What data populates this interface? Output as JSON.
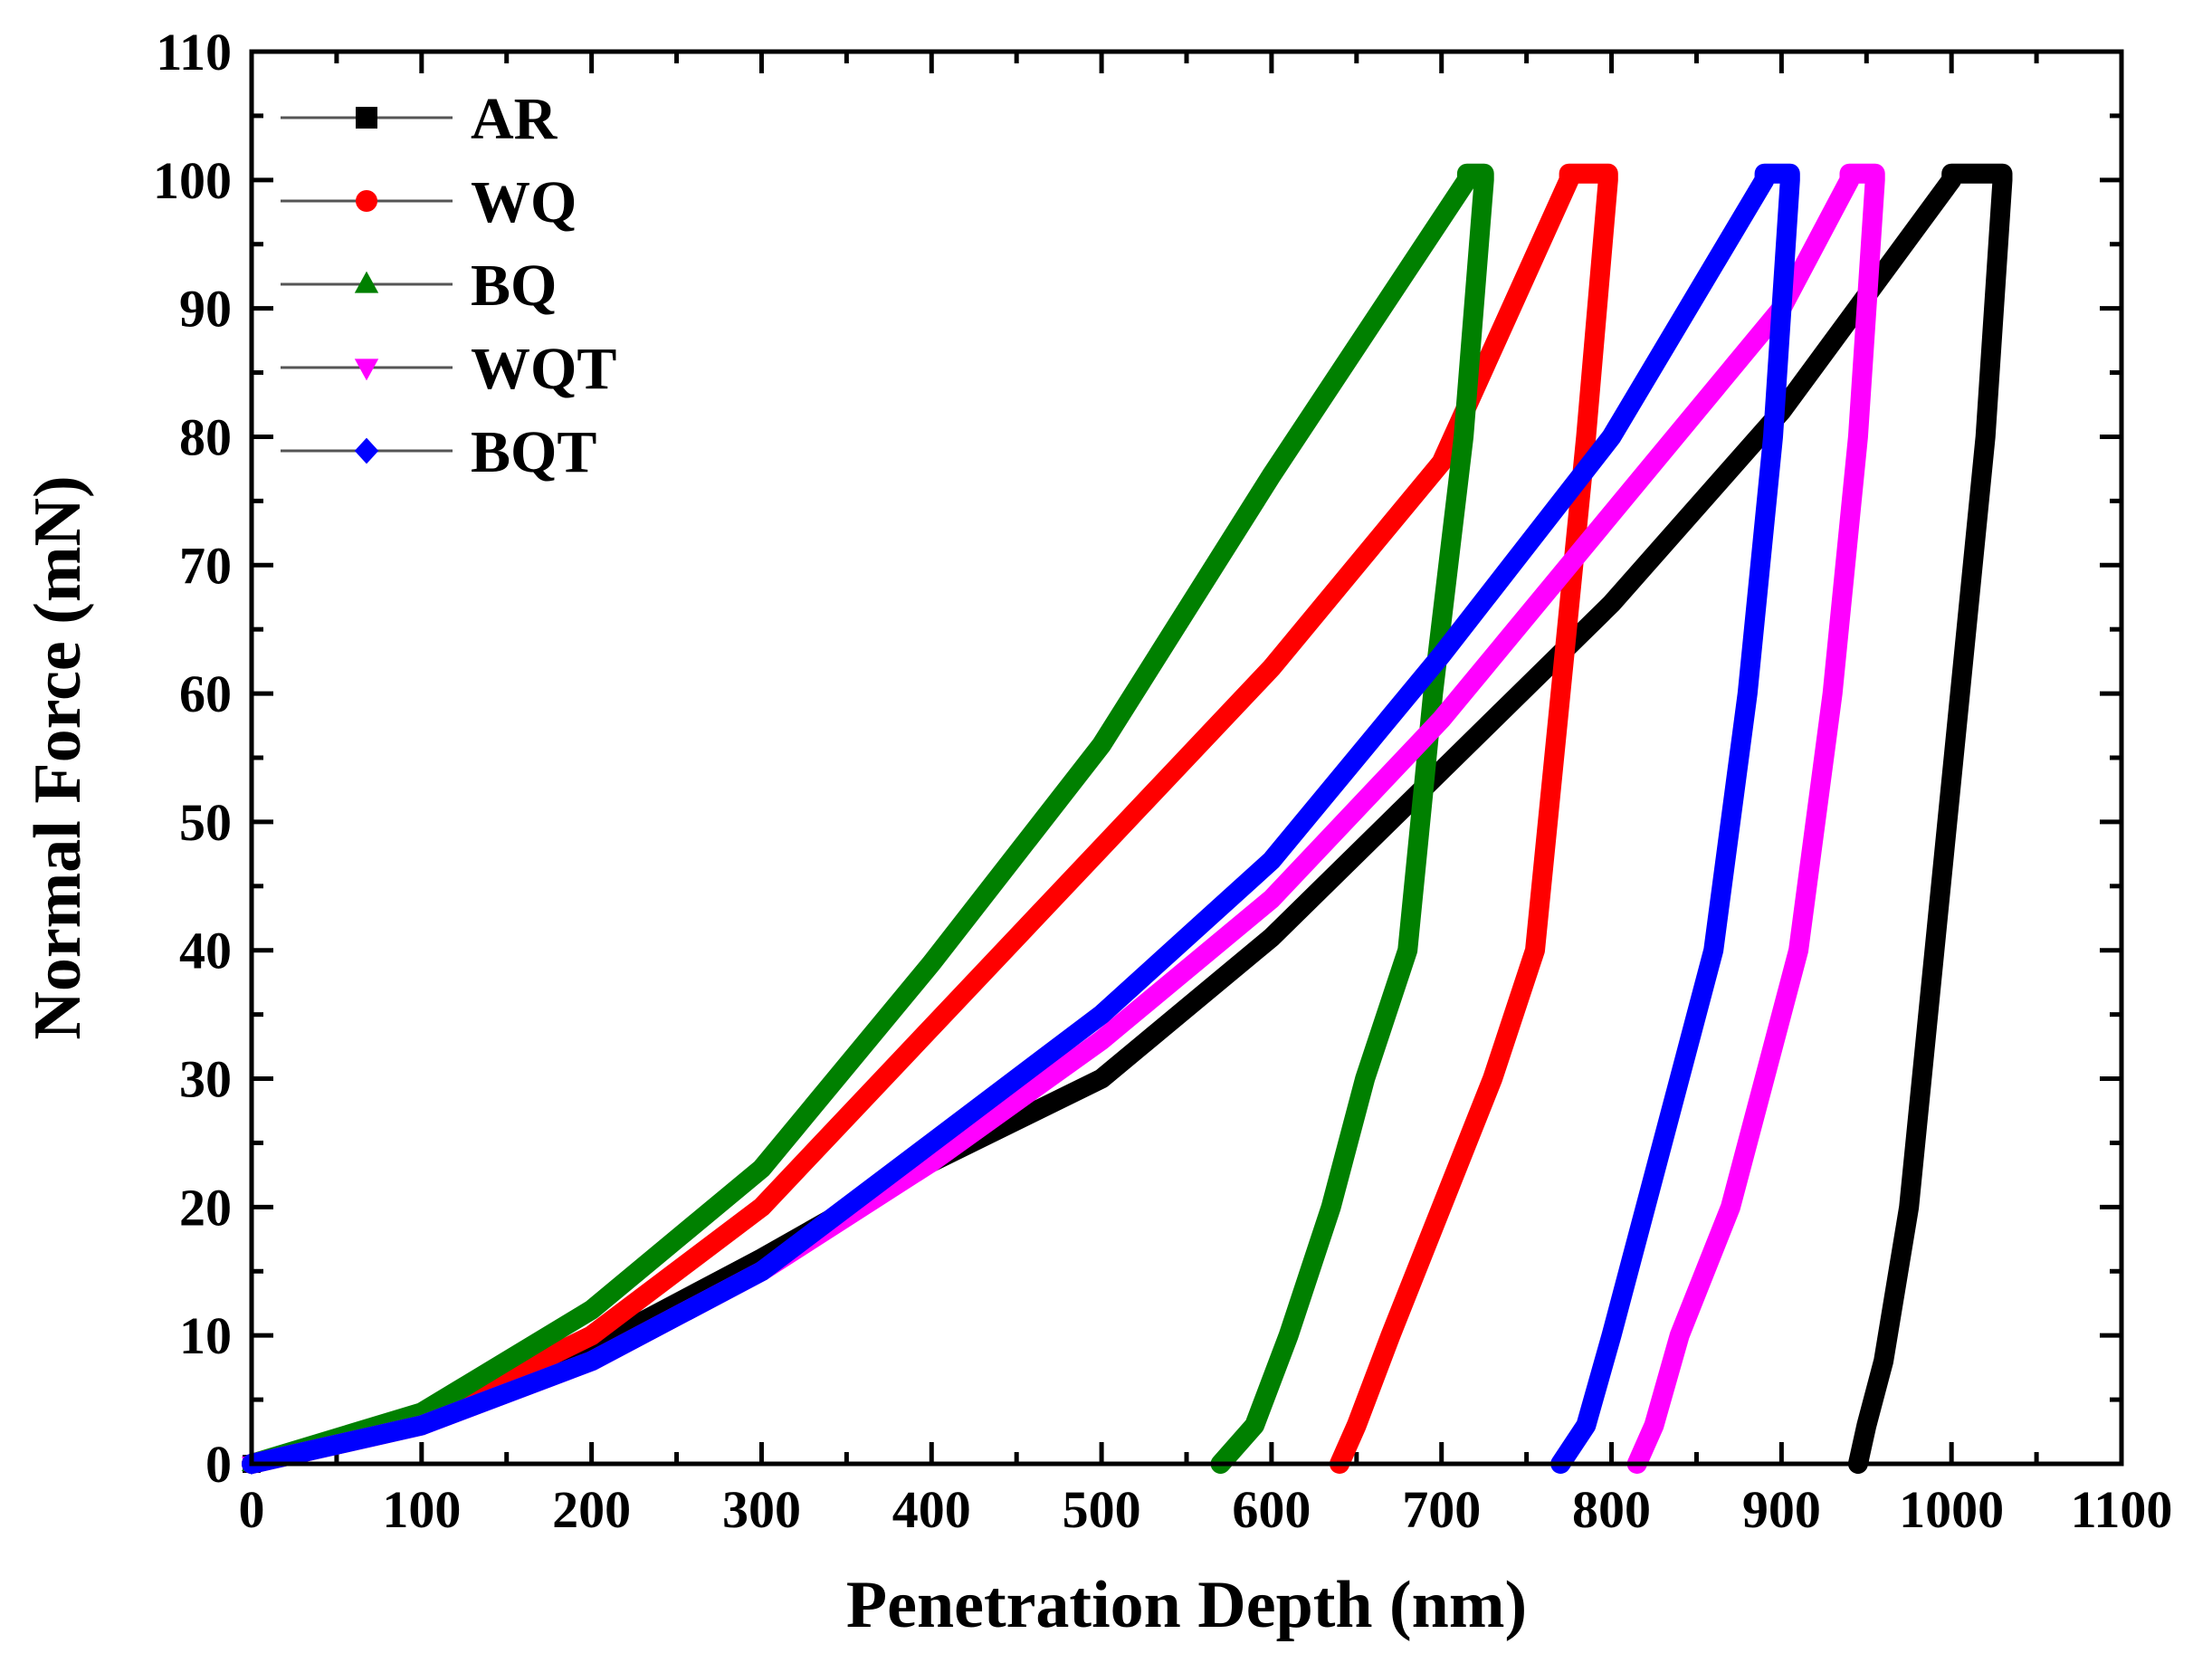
{
  "chart_data": {
    "type": "line",
    "title": "",
    "xlabel": "Penetration Depth (nm)",
    "ylabel": "Normal Force (mN)",
    "xlim": [
      0,
      1100
    ],
    "ylim": [
      0,
      110
    ],
    "xticks": [
      0,
      100,
      200,
      300,
      400,
      500,
      600,
      700,
      800,
      900,
      1000,
      1100
    ],
    "yticks": [
      0,
      10,
      20,
      30,
      40,
      50,
      60,
      70,
      80,
      90,
      100,
      110
    ],
    "xtick_labels": [
      "0",
      "100",
      "200",
      "300",
      "400",
      "500",
      "600",
      "700",
      "800",
      "900",
      "1000",
      "1100"
    ],
    "ytick_labels": [
      "0",
      "10",
      "20",
      "30",
      "40",
      "50",
      "60",
      "70",
      "80",
      "90",
      "100",
      "110"
    ],
    "legend_position": "top-left",
    "series": [
      {
        "name": "AR",
        "color": "#000000",
        "marker": "square",
        "loading": [
          [
            0,
            0
          ],
          [
            100,
            3
          ],
          [
            200,
            9
          ],
          [
            300,
            16
          ],
          [
            400,
            23.5
          ],
          [
            500,
            30
          ],
          [
            600,
            41
          ],
          [
            700,
            54
          ],
          [
            800,
            67
          ],
          [
            900,
            82
          ],
          [
            1000,
            100
          ]
        ],
        "hold": [
          [
            1000,
            100.5
          ],
          [
            1030,
            100.5
          ]
        ],
        "unloading": [
          [
            1030,
            100
          ],
          [
            1020,
            80
          ],
          [
            1005,
            60
          ],
          [
            990,
            40
          ],
          [
            975,
            20
          ],
          [
            960,
            8
          ],
          [
            950,
            3
          ],
          [
            945,
            0
          ]
        ]
      },
      {
        "name": "WQ",
        "color": "#ff0000",
        "marker": "circle",
        "loading": [
          [
            0,
            0
          ],
          [
            100,
            3.5
          ],
          [
            200,
            10
          ],
          [
            300,
            20
          ],
          [
            400,
            34
          ],
          [
            500,
            48
          ],
          [
            600,
            62
          ],
          [
            700,
            78
          ],
          [
            775,
            100
          ]
        ],
        "hold": [
          [
            775,
            100.5
          ],
          [
            798,
            100.5
          ]
        ],
        "unloading": [
          [
            798,
            100
          ],
          [
            785,
            80
          ],
          [
            770,
            60
          ],
          [
            755,
            40
          ],
          [
            730,
            30
          ],
          [
            700,
            20
          ],
          [
            670,
            10
          ],
          [
            650,
            3
          ],
          [
            640,
            0
          ]
        ]
      },
      {
        "name": "BQ",
        "color": "#008000",
        "marker": "triangle-up",
        "loading": [
          [
            0,
            0
          ],
          [
            100,
            4
          ],
          [
            200,
            12
          ],
          [
            300,
            23
          ],
          [
            400,
            39
          ],
          [
            500,
            56
          ],
          [
            600,
            77
          ],
          [
            715,
            100
          ]
        ],
        "hold": [
          [
            715,
            100.5
          ],
          [
            725,
            100.5
          ]
        ],
        "unloading": [
          [
            725,
            100
          ],
          [
            713,
            80
          ],
          [
            695,
            60
          ],
          [
            680,
            40
          ],
          [
            655,
            30
          ],
          [
            635,
            20
          ],
          [
            610,
            10
          ],
          [
            590,
            3
          ],
          [
            570,
            0
          ]
        ]
      },
      {
        "name": "WQT",
        "color": "#ff00ff",
        "marker": "triangle-down",
        "loading": [
          [
            0,
            0
          ],
          [
            100,
            3
          ],
          [
            200,
            8
          ],
          [
            300,
            15
          ],
          [
            400,
            23.5
          ],
          [
            500,
            33
          ],
          [
            600,
            44
          ],
          [
            700,
            58
          ],
          [
            800,
            74
          ],
          [
            900,
            90
          ],
          [
            940,
            100
          ]
        ],
        "hold": [
          [
            940,
            100.5
          ],
          [
            955,
            100.5
          ]
        ],
        "unloading": [
          [
            955,
            100
          ],
          [
            945,
            80
          ],
          [
            930,
            60
          ],
          [
            910,
            40
          ],
          [
            890,
            30
          ],
          [
            870,
            20
          ],
          [
            840,
            10
          ],
          [
            825,
            3
          ],
          [
            815,
            0
          ]
        ]
      },
      {
        "name": "BQT",
        "color": "#0000ff",
        "marker": "diamond",
        "loading": [
          [
            0,
            0
          ],
          [
            100,
            3
          ],
          [
            200,
            8
          ],
          [
            300,
            15
          ],
          [
            400,
            25
          ],
          [
            500,
            35
          ],
          [
            600,
            47
          ],
          [
            700,
            63
          ],
          [
            800,
            80
          ],
          [
            890,
            100
          ]
        ],
        "hold": [
          [
            890,
            100.5
          ],
          [
            905,
            100.5
          ]
        ],
        "unloading": [
          [
            905,
            100
          ],
          [
            895,
            80
          ],
          [
            880,
            60
          ],
          [
            860,
            40
          ],
          [
            840,
            30
          ],
          [
            820,
            20
          ],
          [
            800,
            10
          ],
          [
            785,
            3
          ],
          [
            770,
            0
          ]
        ]
      }
    ]
  }
}
